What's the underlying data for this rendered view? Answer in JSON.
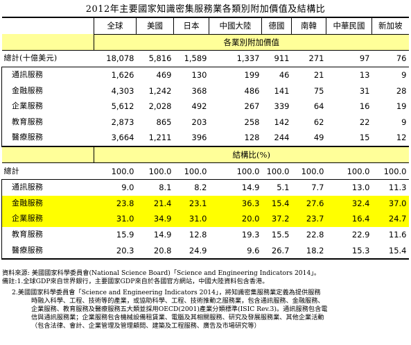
{
  "title": "2012年主要國家知識密集服務業各類別附加價值及結構比",
  "columns": [
    "全球",
    "美國",
    "日本",
    "中國大陸",
    "德國",
    "南韓",
    "中華民國",
    "新加坡"
  ],
  "section_value": "各業別附加價值",
  "section_ratio": "結構比(%)",
  "value_rows": [
    {
      "label": "總計(十億美元)",
      "values": [
        "18,078",
        "5,816",
        "1,589",
        "1,337",
        "911",
        "271",
        "97",
        "76"
      ]
    },
    {
      "label": "通訊服務",
      "values": [
        "1,626",
        "469",
        "130",
        "199",
        "46",
        "21",
        "13",
        "9"
      ]
    },
    {
      "label": "金融服務",
      "values": [
        "4,303",
        "1,242",
        "368",
        "486",
        "141",
        "75",
        "31",
        "28"
      ]
    },
    {
      "label": "企業服務",
      "values": [
        "5,612",
        "2,028",
        "492",
        "267",
        "339",
        "64",
        "16",
        "19"
      ]
    },
    {
      "label": "教育服務",
      "values": [
        "2,873",
        "865",
        "203",
        "258",
        "142",
        "62",
        "22",
        "9"
      ]
    },
    {
      "label": "醫療服務",
      "values": [
        "3,664",
        "1,211",
        "396",
        "128",
        "244",
        "49",
        "15",
        "12"
      ]
    }
  ],
  "ratio_rows": [
    {
      "label": "總計",
      "values": [
        "100.0",
        "100.0",
        "100.0",
        "100.0",
        "100.0",
        "100.0",
        "100.0",
        "100.0"
      ]
    },
    {
      "label": "通訊服務",
      "values": [
        "9.0",
        "8.1",
        "8.2",
        "14.9",
        "5.1",
        "7.7",
        "13.0",
        "11.3"
      ]
    },
    {
      "label": "金融服務",
      "values": [
        "23.8",
        "21.4",
        "23.1",
        "36.3",
        "15.4",
        "27.6",
        "32.4",
        "37.0"
      ]
    },
    {
      "label": "企業服務",
      "values": [
        "31.0",
        "34.9",
        "31.0",
        "20.0",
        "37.2",
        "23.7",
        "16.4",
        "24.7"
      ]
    },
    {
      "label": "教育服務",
      "values": [
        "15.9",
        "14.9",
        "12.8",
        "19.3",
        "15.5",
        "22.8",
        "22.9",
        "11.6"
      ]
    },
    {
      "label": "醫療服務",
      "values": [
        "20.3",
        "20.8",
        "24.9",
        "9.6",
        "26.7",
        "18.2",
        "15.3",
        "15.4"
      ]
    }
  ],
  "notes": {
    "source": "資料來源: 美國國家科學委員會(National Science Board)「Science and Engineering Indicators 2014」。",
    "note1": "備註:1.全球GDP來自世界銀行，主要國家GDP來自於各國官方網站，中國大陸資料包含香港。",
    "note2_lines": [
      "2.美國國家科學委員會「Science and Engineering Indicators 2014」，將知識密集服務業定義為提供服務",
      "時融入科學、工程、技術等的產業，或協助科學、工程、技術推動之服務業，包含通訊服務、金融服務、",
      "企業服務、教育服務及醫療服務五大類並採用OECD(2001)產業分類標準(ISIC Rev.3)。通訊服務包含電",
      "信與通訊服務業；企業服務包含機械設備租賃業、電腦及其相關服務、研究及發展服務業、其他企業活動",
      "（包含法律、會計、企業管理及管理顧問、建築及工程服務、廣告及市場研究等）"
    ]
  }
}
